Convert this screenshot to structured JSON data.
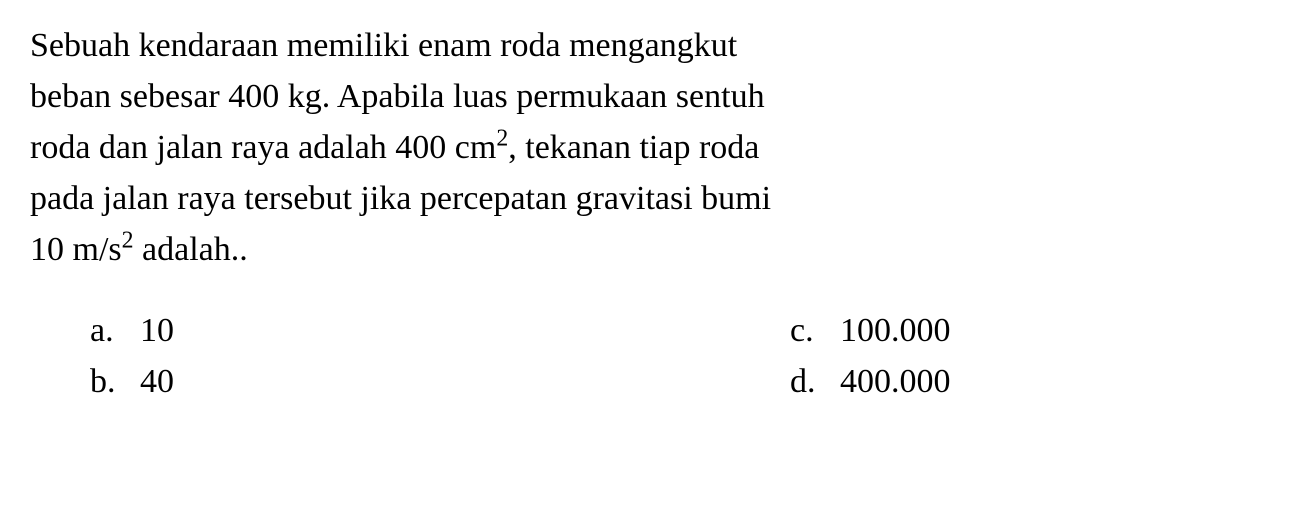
{
  "question": {
    "line1": "Sebuah kendaraan memiliki enam roda mengangkut",
    "line2_part1": "beban sebesar 400 kg. Apabila luas permukaan sentuh",
    "line3_part1": "roda dan jalan raya adalah 400 cm",
    "line3_sup": "2",
    "line3_part2": ", tekanan tiap roda",
    "line4": "pada jalan raya tersebut jika percepatan gravitasi bumi",
    "line5_part1": "10 m/s",
    "line5_sup": "2",
    "line5_part2": " adalah.."
  },
  "options": {
    "a": {
      "letter": "a.",
      "value": "10"
    },
    "b": {
      "letter": "b.",
      "value": "40"
    },
    "c": {
      "letter": "c.",
      "value": "100.000"
    },
    "d": {
      "letter": "d.",
      "value": "400.000"
    }
  },
  "colors": {
    "background": "#ffffff",
    "text": "#000000"
  },
  "typography": {
    "font_family": "Times New Roman",
    "font_size_pt": 26,
    "line_height": 1.5
  }
}
